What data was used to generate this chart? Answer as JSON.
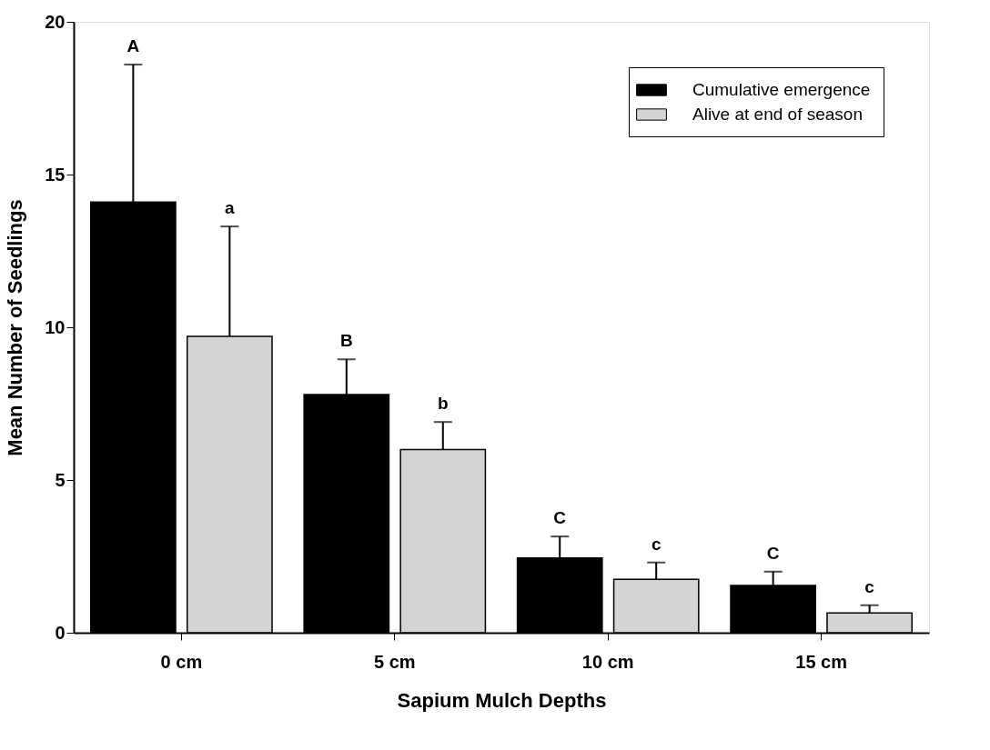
{
  "chart_data": {
    "type": "bar",
    "xlabel": "Sapium Mulch Depths",
    "ylabel": "Mean Number of Seedlings",
    "categories": [
      "0 cm",
      "5 cm",
      "10 cm",
      "15 cm"
    ],
    "series": [
      {
        "name": "Cumulative emergence",
        "color": "#000000",
        "values": [
          14.1,
          7.8,
          2.45,
          1.55
        ],
        "errors": [
          [
            14.1,
            18.6
          ],
          [
            7.8,
            8.95
          ],
          [
            2.45,
            3.15
          ],
          [
            1.55,
            2.0
          ]
        ]
      },
      {
        "name": "Alive at end of season",
        "color": "#d4d4d4",
        "values": [
          9.7,
          6.0,
          1.75,
          0.65
        ],
        "errors": [
          [
            9.7,
            13.3
          ],
          [
            6.0,
            6.9
          ],
          [
            1.75,
            2.3
          ],
          [
            0.65,
            0.9
          ]
        ]
      }
    ],
    "ylim": [
      0,
      20
    ],
    "yticks": [
      0,
      5,
      10,
      15,
      20
    ],
    "grid": false,
    "legend": "top right",
    "annotations": [
      "A",
      "a",
      "B",
      "b",
      "C",
      "c",
      "C",
      "c"
    ]
  }
}
